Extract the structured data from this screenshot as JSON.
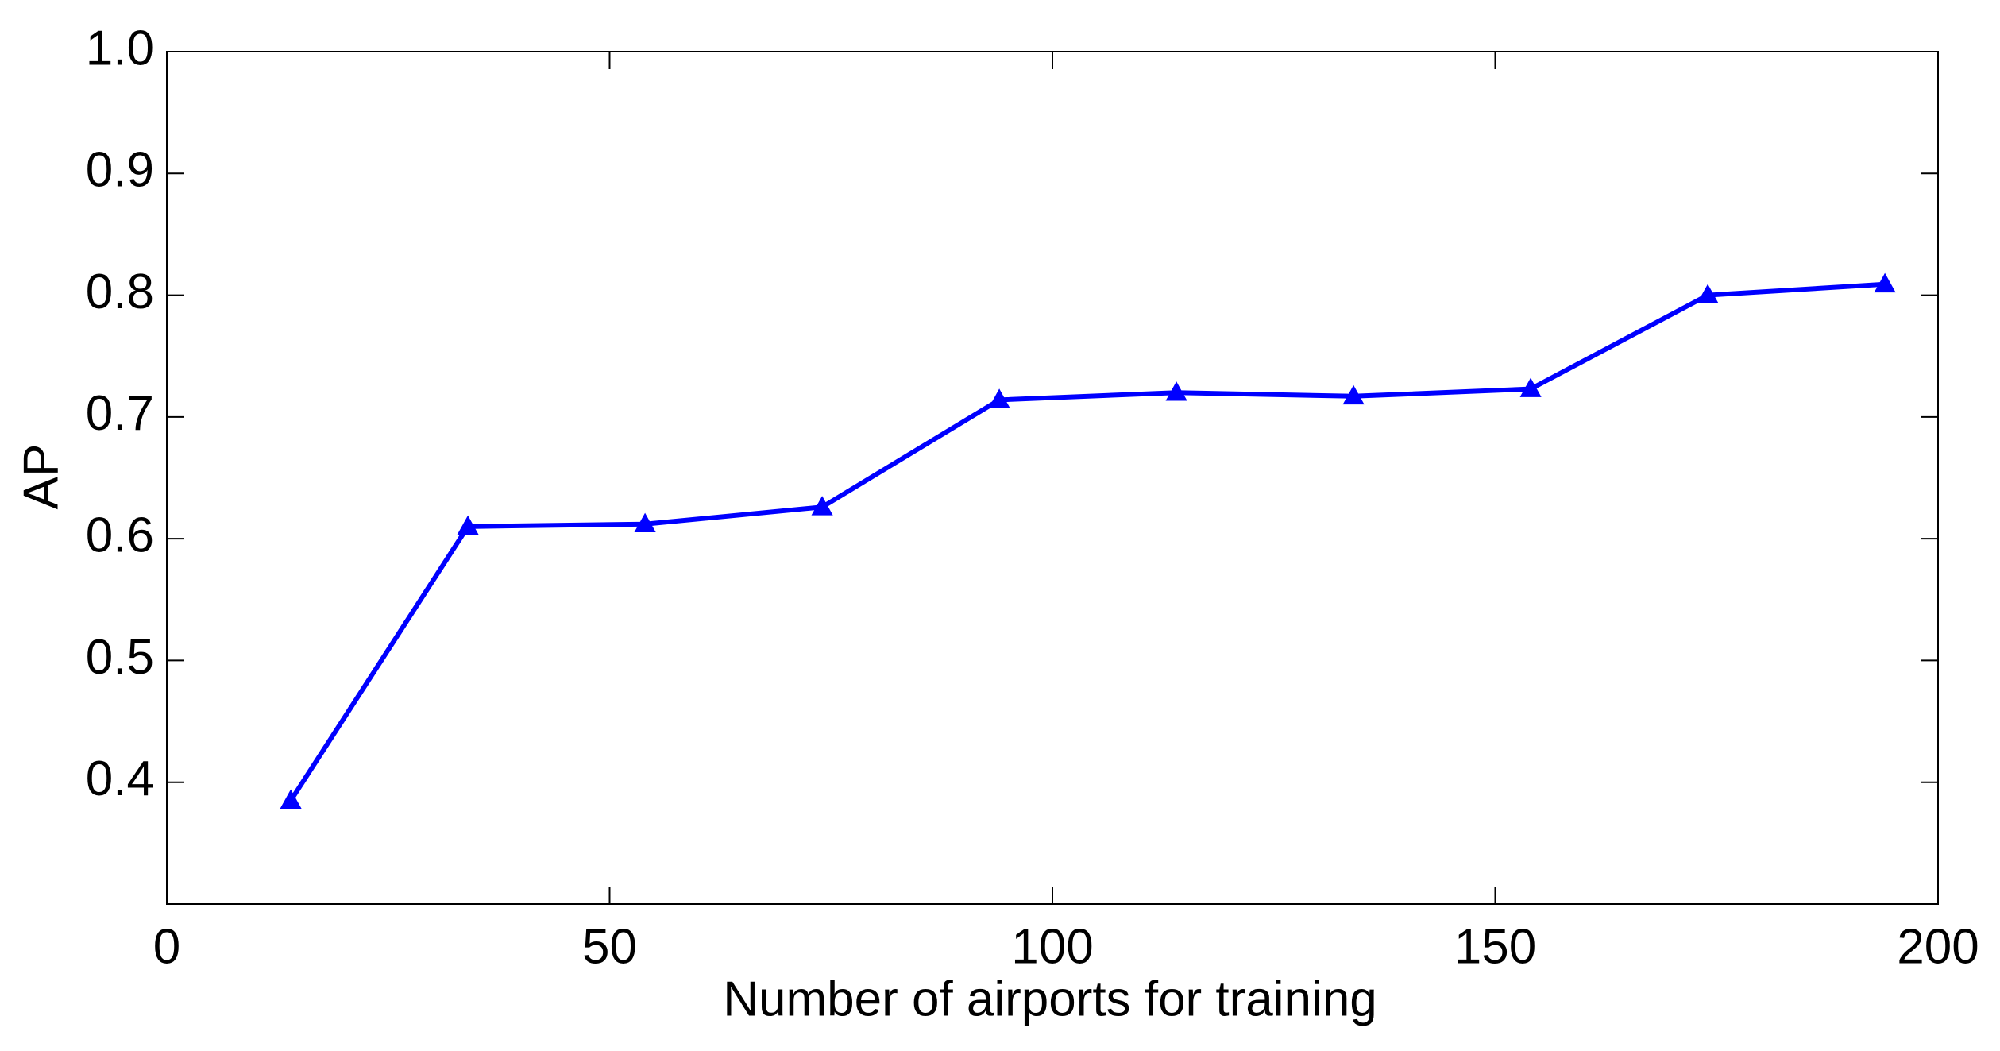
{
  "chart_data": {
    "type": "line",
    "xlabel": "Number of airports for training",
    "ylabel": "AP",
    "x": [
      14,
      34,
      54,
      74,
      94,
      114,
      134,
      154,
      174,
      194
    ],
    "series": [
      {
        "color": "#0000ff",
        "marker": "triangle",
        "values": [
          0.385,
          0.61,
          0.612,
          0.626,
          0.714,
          0.72,
          0.717,
          0.723,
          0.8,
          0.809
        ]
      }
    ],
    "xlim": [
      0,
      200
    ],
    "xticks": [
      0,
      50,
      100,
      150,
      200
    ],
    "ylim": [
      0.3,
      1.0
    ],
    "yticks": [
      0.4,
      0.5,
      0.6,
      0.7,
      0.8,
      0.9,
      {
        "value": 1,
        "label": "1.0"
      }
    ],
    "grid": false
  }
}
